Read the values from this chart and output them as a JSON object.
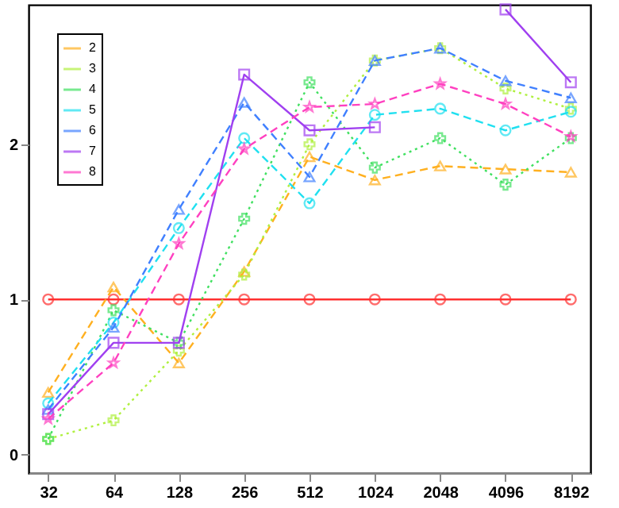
{
  "chart_data": {
    "type": "line",
    "categories": [
      "32",
      "64",
      "128",
      "256",
      "512",
      "1024",
      "2048",
      "4096",
      "8192"
    ],
    "ylim": [
      -0.12,
      2.9
    ],
    "yticks": [
      0,
      1,
      2
    ],
    "grid": false,
    "legend": "top left",
    "series": [
      {
        "color": "#ff3030",
        "line_style": "solid",
        "marker": "circle",
        "values": [
          1,
          1,
          1,
          1,
          1,
          1,
          1,
          1,
          1
        ]
      },
      {
        "name": "2",
        "color": "#ffb020",
        "line_style": "dashed",
        "marker": "triangle",
        "values": [
          0.4,
          1.08,
          0.59,
          1.18,
          1.92,
          1.77,
          1.86,
          1.84,
          1.82
        ]
      },
      {
        "name": "3",
        "color": "#b0f040",
        "line_style": "dotted",
        "marker": "cross",
        "values": [
          0.1,
          0.22,
          0.67,
          1.16,
          2.0,
          2.54,
          2.62,
          2.36,
          2.23
        ]
      },
      {
        "name": "4",
        "color": "#40e060",
        "line_style": "dotted",
        "marker": "cross",
        "values": [
          0.1,
          0.93,
          0.72,
          1.52,
          2.4,
          1.85,
          2.04,
          1.74,
          2.04
        ]
      },
      {
        "name": "5",
        "color": "#20e0f0",
        "line_style": "dashed",
        "marker": "circle",
        "values": [
          0.33,
          0.85,
          1.46,
          2.04,
          1.62,
          2.19,
          2.23,
          2.09,
          2.21
        ]
      },
      {
        "name": "6",
        "color": "#4080ff",
        "line_style": "dashed",
        "marker": "triangle",
        "values": [
          0.29,
          0.82,
          1.58,
          2.27,
          1.79,
          2.54,
          2.62,
          2.41,
          2.3
        ]
      },
      {
        "name": "7",
        "color": "#a040f0",
        "line_style": "solid",
        "marker": "square",
        "values": [
          0.26,
          0.72,
          0.72,
          2.45,
          2.09,
          2.11,
          null,
          2.87,
          2.4
        ]
      },
      {
        "name": "8",
        "color": "#ff40c0",
        "line_style": "dashed",
        "marker": "star",
        "values": [
          0.23,
          0.59,
          1.36,
          1.97,
          2.24,
          2.26,
          2.39,
          2.26,
          2.05
        ]
      }
    ]
  }
}
